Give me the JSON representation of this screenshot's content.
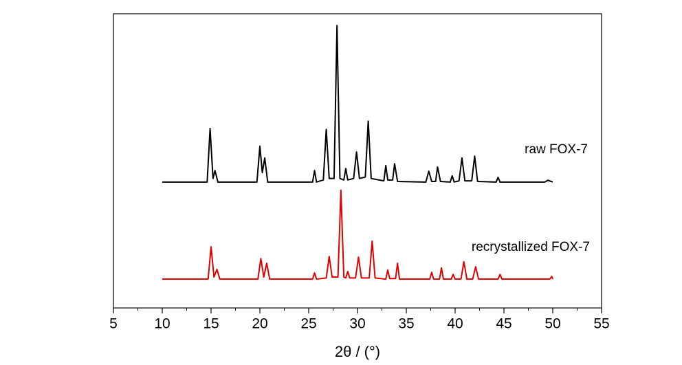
{
  "chart_data": {
    "type": "line",
    "x_label": "2θ / (°)",
    "xlim": [
      5,
      55
    ],
    "xticks": [
      5,
      10,
      15,
      20,
      25,
      30,
      35,
      40,
      45,
      50,
      55
    ],
    "xminorticks": [
      7.5,
      12.5,
      17.5,
      22.5,
      27.5,
      32.5,
      37.5,
      42.5,
      47.5,
      52.5
    ],
    "ylim": [
      0,
      100
    ],
    "series": [
      {
        "name": "raw FOX-7",
        "color": "#000000",
        "x": [
          10,
          14.6,
          14.9,
          15.2,
          15.4,
          15.7,
          19.7,
          20.0,
          20.25,
          20.5,
          20.8,
          25.4,
          25.6,
          25.8,
          26.5,
          26.8,
          27.1,
          27.6,
          27.9,
          28.2,
          28.6,
          28.8,
          29.0,
          29.6,
          29.9,
          30.2,
          30.8,
          31.1,
          31.4,
          32.7,
          32.9,
          33.1,
          33.6,
          33.8,
          34.1,
          37.0,
          37.3,
          37.6,
          38.0,
          38.2,
          38.5,
          39.5,
          39.7,
          39.9,
          40.4,
          40.7,
          41.0,
          41.7,
          42.0,
          42.3,
          44.2,
          44.4,
          44.6,
          49.2,
          49.5,
          50
        ],
        "values": [
          42.8,
          42.8,
          61,
          44,
          46.7,
          42.8,
          42.8,
          55,
          46,
          51,
          42.8,
          42.8,
          46.7,
          42.8,
          43.5,
          60.7,
          44,
          44,
          96,
          44,
          43.5,
          47.4,
          43.5,
          44,
          53,
          44,
          44.5,
          63.5,
          44,
          43.2,
          48.4,
          43.5,
          43.5,
          49,
          43,
          42.8,
          46.5,
          43,
          43,
          47.9,
          43,
          42.8,
          44.9,
          42.8,
          43.2,
          51,
          43.2,
          43.2,
          51.6,
          43,
          42.8,
          44.4,
          42.8,
          42.8,
          43.4,
          42.8
        ]
      },
      {
        "name": "recrystallized FOX-7",
        "color": "#e00000",
        "x": [
          10,
          14.7,
          15.0,
          15.3,
          15.6,
          15.9,
          19.8,
          20.1,
          20.4,
          20.7,
          21.0,
          25.4,
          25.6,
          25.8,
          26.8,
          27.1,
          27.4,
          28.0,
          28.3,
          28.6,
          28.8,
          29.0,
          29.2,
          29.8,
          30.1,
          30.4,
          31.2,
          31.5,
          31.8,
          32.9,
          33.1,
          33.3,
          33.9,
          34.1,
          34.3,
          37.4,
          37.6,
          37.8,
          38.4,
          38.6,
          38.8,
          39.6,
          39.8,
          40.0,
          40.6,
          40.9,
          41.2,
          41.8,
          42.1,
          42.4,
          44.4,
          44.6,
          44.8,
          49.7,
          49.9,
          50
        ],
        "values": [
          9.8,
          9.8,
          20.8,
          10.5,
          13.1,
          9.8,
          9.8,
          16.8,
          10.5,
          15.2,
          9.8,
          9.8,
          11.9,
          9.8,
          10.2,
          17.5,
          10.5,
          10.5,
          40,
          10.5,
          10.2,
          12.4,
          10.2,
          10.2,
          17.3,
          10.2,
          10.2,
          22.7,
          10.2,
          9.8,
          12.9,
          10,
          10,
          15.2,
          9.8,
          9.8,
          12.1,
          9.8,
          9.8,
          13.6,
          9.8,
          9.8,
          11.4,
          9.8,
          9.8,
          15.7,
          9.8,
          9.8,
          14,
          9.8,
          9.8,
          11.4,
          9.8,
          9.8,
          10.7,
          9.8
        ]
      }
    ]
  }
}
